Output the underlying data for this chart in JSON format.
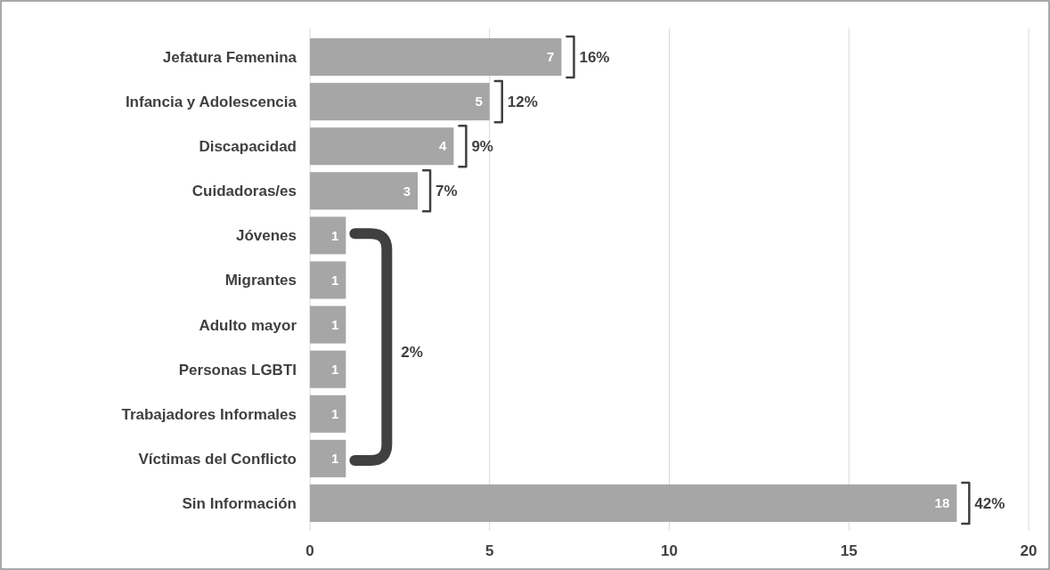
{
  "chart_data": {
    "type": "bar",
    "orientation": "horizontal",
    "categories": [
      "Jefatura Femenina",
      "Infancia y Adolescencia",
      "Discapacidad",
      "Cuidadoras/es",
      "Jóvenes",
      "Migrantes",
      "Adulto mayor",
      "Personas LGBTI",
      "Trabajadores Informales",
      "Víctimas del Conflicto",
      "Sin Información"
    ],
    "values": [
      7,
      5,
      4,
      3,
      1,
      1,
      1,
      1,
      1,
      1,
      18
    ],
    "color": "#a6a6a6",
    "xlim": [
      0,
      20
    ],
    "xticks": [
      0,
      5,
      10,
      15,
      20
    ],
    "grid": "x",
    "data_labels": true,
    "annotations": [
      {
        "text": "16%",
        "x": 7,
        "y": "Jefatura Femenina"
      },
      {
        "text": "12%",
        "x": 5,
        "y": "Infancia y Adolescencia"
      },
      {
        "text": "9%",
        "x": 4,
        "y": "Discapacidad"
      },
      {
        "text": "7%",
        "x": 3,
        "y": "Cuidadoras/es"
      },
      "2%",
      {
        "text": "42%",
        "x": 18,
        "y": "Sin Información"
      }
    ]
  }
}
